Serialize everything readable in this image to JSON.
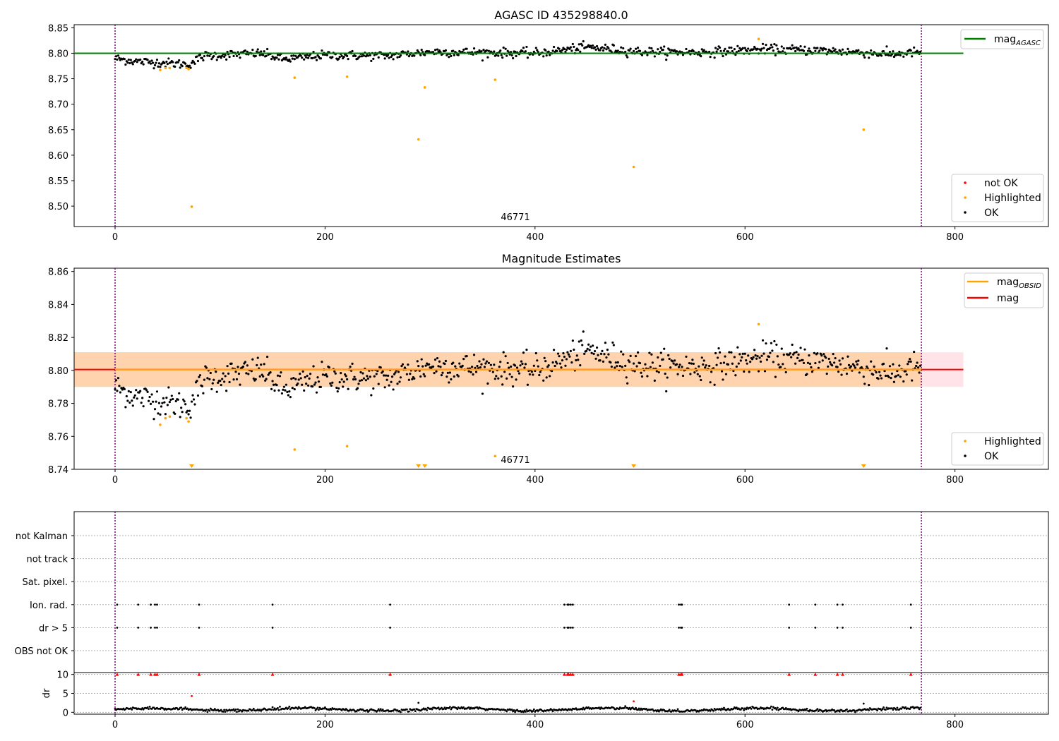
{
  "chart_data": [
    {
      "id": "agasc",
      "type": "scatter",
      "title": "AGASC ID 435298840.0",
      "xlim": [
        -39,
        889
      ],
      "ylim": [
        8.46,
        8.856
      ],
      "xticks": [
        0,
        200,
        400,
        600,
        800
      ],
      "yticks": [
        8.5,
        8.55,
        8.6,
        8.65,
        8.7,
        8.75,
        8.8,
        8.85
      ],
      "ytick_decimals": 2,
      "obs_bounds": [
        0,
        768
      ],
      "annotation": {
        "text": "46771",
        "x": 384
      },
      "hlines": [
        {
          "name": "mag_AGASC",
          "y": 8.8,
          "x": [
            -39,
            808
          ],
          "color": "#008000"
        }
      ],
      "highlighted_points": [
        {
          "x": 43,
          "y": 8.767
        },
        {
          "x": 48,
          "y": 8.771
        },
        {
          "x": 52,
          "y": 8.771
        },
        {
          "x": 68,
          "y": 8.771
        },
        {
          "x": 70,
          "y": 8.769
        },
        {
          "x": 73,
          "y": 8.499
        },
        {
          "x": 171,
          "y": 8.752
        },
        {
          "x": 221,
          "y": 8.754
        },
        {
          "x": 289,
          "y": 8.631
        },
        {
          "x": 295,
          "y": 8.733
        },
        {
          "x": 362,
          "y": 8.748
        },
        {
          "x": 494,
          "y": 8.577
        },
        {
          "x": 613,
          "y": 8.828
        },
        {
          "x": 713,
          "y": 8.65
        }
      ],
      "ok_trend": [
        [
          0,
          8.79
        ],
        [
          20,
          8.784
        ],
        [
          40,
          8.782
        ],
        [
          70,
          8.778
        ],
        [
          85,
          8.795
        ],
        [
          140,
          8.8
        ],
        [
          160,
          8.788
        ],
        [
          200,
          8.796
        ],
        [
          260,
          8.795
        ],
        [
          300,
          8.803
        ],
        [
          400,
          8.8
        ],
        [
          450,
          8.812
        ],
        [
          500,
          8.803
        ],
        [
          560,
          8.802
        ],
        [
          620,
          8.808
        ],
        [
          680,
          8.805
        ],
        [
          740,
          8.798
        ],
        [
          768,
          8.803
        ]
      ],
      "ok_count": 768,
      "ok_scatter": 0.0075,
      "legend": {
        "lines": [
          {
            "label": "mag",
            "sub": "AGASC",
            "color": "#008000"
          }
        ],
        "markers": [
          {
            "label": "not OK",
            "color": "#ff0000"
          },
          {
            "label": "Highlighted",
            "color": "#ffa500"
          },
          {
            "label": "OK",
            "color": "#000000"
          }
        ]
      }
    },
    {
      "id": "estimates",
      "type": "scatter",
      "title": "Magnitude Estimates",
      "xlim": [
        -39,
        889
      ],
      "ylim": [
        8.74,
        8.862
      ],
      "xticks": [
        0,
        200,
        400,
        600,
        800
      ],
      "yticks": [
        8.74,
        8.76,
        8.78,
        8.8,
        8.82,
        8.84,
        8.86
      ],
      "ytick_decimals": 2,
      "obs_bounds": [
        0,
        768
      ],
      "annotation": {
        "text": "46771",
        "x": 384
      },
      "bands": [
        {
          "y": [
            8.79,
            8.811
          ],
          "x": [
            -39,
            808
          ],
          "color": "#ffc0cb",
          "opacity": 0.45
        },
        {
          "y": [
            8.79,
            8.811
          ],
          "x": [
            -39,
            768
          ],
          "color": "#ffa500",
          "opacity": 0.25
        }
      ],
      "hlines": [
        {
          "name": "mag",
          "y": 8.8005,
          "x": [
            -39,
            808
          ],
          "color": "#ff0000"
        },
        {
          "name": "mag_OBSID",
          "y": 8.8005,
          "x": [
            0,
            768
          ],
          "color": "#ffa500"
        }
      ],
      "highlighted_points": [
        {
          "x": 43,
          "y": 8.767
        },
        {
          "x": 48,
          "y": 8.771
        },
        {
          "x": 52,
          "y": 8.772
        },
        {
          "x": 68,
          "y": 8.771
        },
        {
          "x": 70,
          "y": 8.769
        },
        {
          "x": 171,
          "y": 8.752
        },
        {
          "x": 221,
          "y": 8.754
        },
        {
          "x": 362,
          "y": 8.748
        },
        {
          "x": 613,
          "y": 8.828
        }
      ],
      "offscale_markers": [
        {
          "x": 73
        },
        {
          "x": 289
        },
        {
          "x": 295
        },
        {
          "x": 494
        },
        {
          "x": 713
        }
      ],
      "ok_trend": [
        [
          0,
          8.79
        ],
        [
          20,
          8.784
        ],
        [
          40,
          8.782
        ],
        [
          70,
          8.778
        ],
        [
          85,
          8.795
        ],
        [
          140,
          8.8
        ],
        [
          160,
          8.788
        ],
        [
          200,
          8.796
        ],
        [
          260,
          8.795
        ],
        [
          300,
          8.803
        ],
        [
          400,
          8.8
        ],
        [
          450,
          8.812
        ],
        [
          500,
          8.803
        ],
        [
          560,
          8.802
        ],
        [
          620,
          8.808
        ],
        [
          680,
          8.805
        ],
        [
          740,
          8.798
        ],
        [
          768,
          8.803
        ]
      ],
      "ok_count": 768,
      "ok_scatter": 0.0075,
      "legend_top": {
        "lines": [
          {
            "label": "mag",
            "sub": "OBSID",
            "color": "#ffa500"
          },
          {
            "label": "mag",
            "sub": "",
            "color": "#ff0000"
          }
        ]
      },
      "legend_bottom": {
        "markers": [
          {
            "label": "Highlighted",
            "color": "#ffa500"
          },
          {
            "label": "OK",
            "color": "#000000"
          }
        ]
      }
    },
    {
      "id": "flags",
      "type": "scatter",
      "title": "",
      "xlim": [
        -39,
        889
      ],
      "rows": [
        "not Kalman",
        "not track",
        "Sat. pixel.",
        "Ion. rad.",
        "dr > 5",
        "OBS not OK"
      ],
      "flag_rows": {
        "Ion. rad.": [
          2,
          22,
          34,
          38,
          40,
          80,
          150,
          262,
          428,
          431,
          432,
          434,
          436,
          537,
          539,
          540,
          642,
          667,
          688,
          693,
          758
        ],
        "dr > 5": [
          2,
          22,
          34,
          38,
          40,
          80,
          150,
          262,
          428,
          431,
          432,
          434,
          436,
          537,
          539,
          540,
          642,
          667,
          688,
          693,
          758
        ]
      },
      "obs_bounds": [
        0,
        768
      ]
    },
    {
      "id": "dr",
      "type": "scatter",
      "ylabel": "dr",
      "xlim": [
        -39,
        889
      ],
      "ylim": [
        -0.5,
        10.5
      ],
      "xticks": [
        0,
        200,
        400,
        600,
        800
      ],
      "yticks": [
        0,
        5,
        10
      ],
      "ytick_decimals": 0,
      "obs_bounds": [
        0,
        768
      ],
      "capped_points_y": 10,
      "capped_points_x": [
        2,
        22,
        34,
        38,
        40,
        80,
        150,
        262,
        428,
        431,
        432,
        434,
        436,
        537,
        539,
        540,
        642,
        667,
        688,
        693,
        758
      ],
      "outlier_points": [
        {
          "x": 73,
          "y": 4.3,
          "color": "#ff0000"
        },
        {
          "x": 494,
          "y": 2.9,
          "color": "#ff0000"
        },
        {
          "x": 289,
          "y": 2.5,
          "color": "#000000"
        },
        {
          "x": 713,
          "y": 2.3,
          "color": "#000000"
        }
      ],
      "ok_base": 0.75,
      "ok_count": 768
    }
  ]
}
